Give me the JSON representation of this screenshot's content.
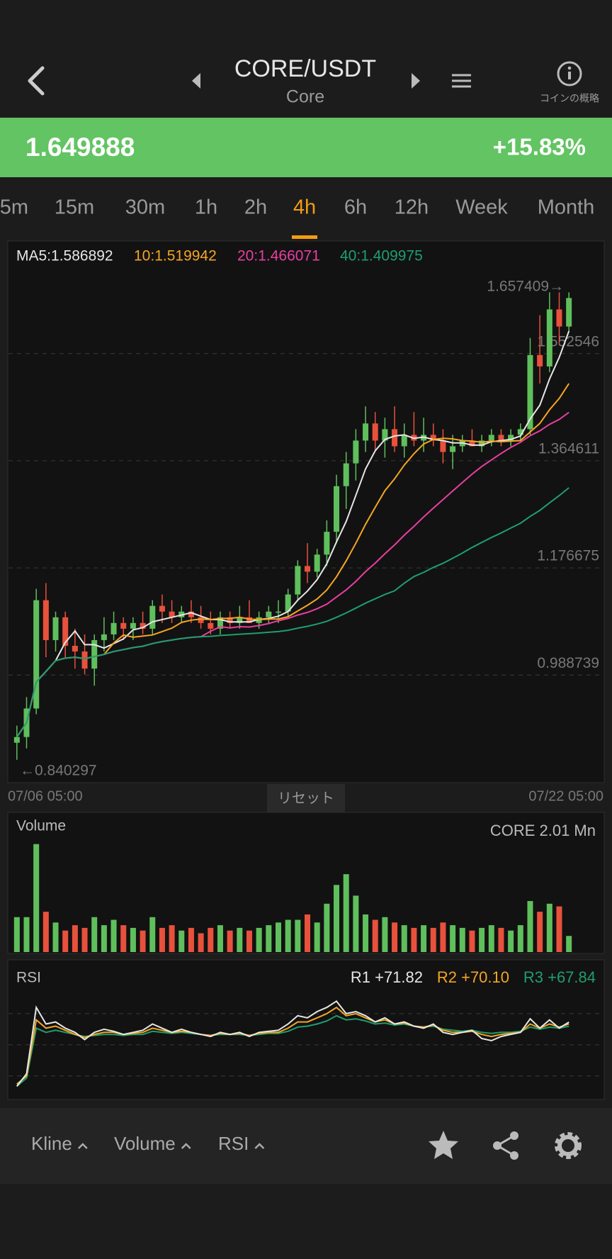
{
  "header": {
    "title": "CORE/USDT",
    "subtitle": "Core",
    "info_label": "コインの概略"
  },
  "ticker": {
    "price": "1.649888",
    "change": "+15.83%"
  },
  "tabs": {
    "items": [
      "5m",
      "15m",
      "30m",
      "1h",
      "2h",
      "4h",
      "6h",
      "12h",
      "Week",
      "Month"
    ],
    "active": 5
  },
  "chart_data": {
    "type": "candlestick",
    "ma": [
      {
        "label": "MA5:1.586892",
        "period": 5,
        "color": "#e6e6e6"
      },
      {
        "label": "10:1.519942",
        "period": 10,
        "color": "#f5a623"
      },
      {
        "label": "20:1.466071",
        "period": 20,
        "color": "#e83fa0"
      },
      {
        "label": "40:1.409975",
        "period": 40,
        "color": "#1f9e6e"
      }
    ],
    "annotations": {
      "high": "1.657409→",
      "low": "←0.840297"
    },
    "ylim": [
      0.8,
      1.75
    ],
    "yticks": [
      0.988739,
      1.176675,
      1.364611,
      1.552546
    ],
    "grid": true,
    "up_color": "#5fbf5c",
    "down_color": "#e8513c",
    "start_date": "07/06 05:00",
    "end_date": "07/22 05:00",
    "reset_label": "リセット",
    "ohlc": [
      [
        0.87,
        0.9,
        0.84,
        0.88
      ],
      [
        0.88,
        0.95,
        0.86,
        0.93
      ],
      [
        0.93,
        1.14,
        0.92,
        1.12
      ],
      [
        1.12,
        1.15,
        1.02,
        1.05
      ],
      [
        1.05,
        1.1,
        1.03,
        1.09
      ],
      [
        1.09,
        1.1,
        1.02,
        1.04
      ],
      [
        1.04,
        1.07,
        1,
        1.03
      ],
      [
        1.03,
        1.06,
        0.99,
        1
      ],
      [
        1,
        1.06,
        0.97,
        1.05
      ],
      [
        1.05,
        1.09,
        1.03,
        1.06
      ],
      [
        1.06,
        1.1,
        1.05,
        1.08
      ],
      [
        1.08,
        1.09,
        1.05,
        1.07
      ],
      [
        1.07,
        1.09,
        1.05,
        1.08
      ],
      [
        1.08,
        1.1,
        1.06,
        1.07
      ],
      [
        1.07,
        1.12,
        1.06,
        1.11
      ],
      [
        1.11,
        1.13,
        1.08,
        1.1
      ],
      [
        1.1,
        1.12,
        1.08,
        1.09
      ],
      [
        1.09,
        1.11,
        1.08,
        1.1
      ],
      [
        1.1,
        1.12,
        1.08,
        1.09
      ],
      [
        1.09,
        1.11,
        1.07,
        1.08
      ],
      [
        1.08,
        1.1,
        1.06,
        1.07
      ],
      [
        1.07,
        1.1,
        1.06,
        1.09
      ],
      [
        1.09,
        1.1,
        1.07,
        1.08
      ],
      [
        1.08,
        1.11,
        1.07,
        1.09
      ],
      [
        1.09,
        1.12,
        1.08,
        1.08
      ],
      [
        1.08,
        1.1,
        1.07,
        1.09
      ],
      [
        1.09,
        1.11,
        1.08,
        1.1
      ],
      [
        1.1,
        1.12,
        1.08,
        1.1
      ],
      [
        1.1,
        1.14,
        1.09,
        1.13
      ],
      [
        1.13,
        1.19,
        1.12,
        1.18
      ],
      [
        1.18,
        1.22,
        1.15,
        1.17
      ],
      [
        1.17,
        1.21,
        1.16,
        1.2
      ],
      [
        1.2,
        1.26,
        1.18,
        1.24
      ],
      [
        1.24,
        1.34,
        1.22,
        1.32
      ],
      [
        1.32,
        1.38,
        1.28,
        1.36
      ],
      [
        1.36,
        1.42,
        1.33,
        1.4
      ],
      [
        1.4,
        1.46,
        1.38,
        1.43
      ],
      [
        1.43,
        1.45,
        1.38,
        1.4
      ],
      [
        1.4,
        1.44,
        1.37,
        1.42
      ],
      [
        1.42,
        1.46,
        1.38,
        1.39
      ],
      [
        1.39,
        1.43,
        1.37,
        1.41
      ],
      [
        1.41,
        1.45,
        1.39,
        1.4
      ],
      [
        1.4,
        1.44,
        1.38,
        1.41
      ],
      [
        1.41,
        1.43,
        1.39,
        1.4
      ],
      [
        1.4,
        1.42,
        1.36,
        1.38
      ],
      [
        1.38,
        1.41,
        1.35,
        1.39
      ],
      [
        1.39,
        1.41,
        1.38,
        1.4
      ],
      [
        1.4,
        1.42,
        1.39,
        1.39
      ],
      [
        1.39,
        1.41,
        1.38,
        1.4
      ],
      [
        1.4,
        1.42,
        1.39,
        1.41
      ],
      [
        1.41,
        1.42,
        1.39,
        1.4
      ],
      [
        1.4,
        1.42,
        1.39,
        1.41
      ],
      [
        1.41,
        1.43,
        1.4,
        1.42
      ],
      [
        1.42,
        1.58,
        1.41,
        1.55
      ],
      [
        1.55,
        1.62,
        1.5,
        1.53
      ],
      [
        1.53,
        1.66,
        1.52,
        1.63
      ],
      [
        1.63,
        1.66,
        1.57,
        1.6
      ],
      [
        1.6,
        1.66,
        1.59,
        1.65
      ]
    ],
    "volume": {
      "title": "Volume",
      "label": "CORE 2.01 Mn",
      "ylim": [
        0,
        2.6
      ],
      "values": [
        0.65,
        0.65,
        2.01,
        0.75,
        0.55,
        0.4,
        0.5,
        0.45,
        0.65,
        0.5,
        0.6,
        0.5,
        0.45,
        0.4,
        0.65,
        0.45,
        0.5,
        0.4,
        0.45,
        0.35,
        0.45,
        0.5,
        0.4,
        0.45,
        0.4,
        0.45,
        0.5,
        0.55,
        0.6,
        0.6,
        0.7,
        0.55,
        0.9,
        1.25,
        1.45,
        1.05,
        0.7,
        0.6,
        0.65,
        0.55,
        0.5,
        0.45,
        0.5,
        0.45,
        0.55,
        0.5,
        0.45,
        0.4,
        0.45,
        0.5,
        0.45,
        0.4,
        0.5,
        0.95,
        0.75,
        0.9,
        0.85,
        0.3
      ]
    },
    "rsi": {
      "title": "RSI",
      "ylim": [
        0,
        110
      ],
      "yticks": [
        20,
        50,
        80
      ],
      "series": [
        {
          "label": "R1 +71.82",
          "color": "#e6e6e6",
          "values": [
            10,
            22,
            86,
            70,
            72,
            66,
            62,
            55,
            62,
            65,
            63,
            60,
            62,
            64,
            70,
            66,
            62,
            65,
            62,
            60,
            58,
            62,
            60,
            62,
            58,
            62,
            63,
            64,
            70,
            78,
            76,
            82,
            86,
            92,
            80,
            82,
            78,
            72,
            76,
            70,
            72,
            68,
            66,
            70,
            62,
            60,
            62,
            64,
            56,
            54,
            58,
            60,
            62,
            75,
            66,
            74,
            66,
            71.82
          ]
        },
        {
          "label": "R2 +70.10",
          "color": "#f5a623",
          "values": [
            12,
            20,
            74,
            66,
            68,
            64,
            60,
            57,
            60,
            62,
            62,
            60,
            61,
            62,
            66,
            64,
            62,
            63,
            62,
            60,
            59,
            61,
            60,
            61,
            59,
            61,
            62,
            62,
            66,
            72,
            72,
            76,
            80,
            86,
            78,
            80,
            76,
            72,
            74,
            70,
            71,
            68,
            67,
            69,
            64,
            62,
            62,
            63,
            60,
            58,
            60,
            61,
            62,
            70,
            66,
            70,
            67,
            70.1
          ]
        },
        {
          "label": "R3 +67.84",
          "color": "#1f9e6e",
          "values": [
            10,
            18,
            66,
            62,
            64,
            62,
            60,
            58,
            59,
            60,
            60,
            59,
            60,
            60,
            63,
            62,
            61,
            62,
            61,
            60,
            59,
            60,
            60,
            60,
            59,
            60,
            61,
            61,
            63,
            67,
            68,
            70,
            73,
            78,
            74,
            75,
            73,
            70,
            71,
            69,
            70,
            68,
            67,
            68,
            65,
            64,
            63,
            64,
            62,
            61,
            62,
            62,
            63,
            67,
            65,
            67,
            66,
            67.84
          ]
        }
      ]
    }
  },
  "toolbar": {
    "items": [
      "Kline",
      "Volume",
      "RSI"
    ]
  }
}
